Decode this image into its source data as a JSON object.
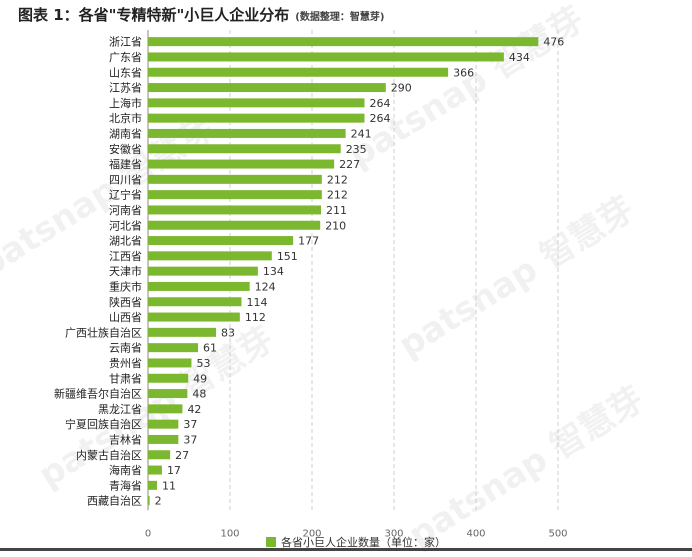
{
  "title": {
    "main": "图表 1：各省\"专精特新\"小巨人企业分布",
    "note": "(数据整理：智慧芽)"
  },
  "watermark": "patsnap 智慧芽",
  "colors": {
    "bar": "#7cb82f",
    "grid": "#cfcfcf",
    "axis": "#888888"
  },
  "chart_data": {
    "type": "bar",
    "orientation": "horizontal",
    "categories": [
      "浙江省",
      "广东省",
      "山东省",
      "江苏省",
      "上海市",
      "北京市",
      "湖南省",
      "安徽省",
      "福建省",
      "四川省",
      "辽宁省",
      "河南省",
      "河北省",
      "湖北省",
      "江西省",
      "天津市",
      "重庆市",
      "陕西省",
      "山西省",
      "广西壮族自治区",
      "云南省",
      "贵州省",
      "甘肃省",
      "新疆维吾尔自治区",
      "黑龙江省",
      "宁夏回族自治区",
      "吉林省",
      "内蒙古自治区",
      "海南省",
      "青海省",
      "西藏自治区"
    ],
    "series": [
      {
        "name": "各省小巨人企业数量（单位：家）",
        "values": [
          476,
          434,
          366,
          290,
          264,
          264,
          241,
          235,
          227,
          212,
          212,
          211,
          210,
          177,
          151,
          134,
          124,
          114,
          112,
          83,
          61,
          53,
          49,
          48,
          42,
          37,
          37,
          27,
          17,
          11,
          2
        ]
      }
    ],
    "xlim": [
      0,
      500
    ],
    "xticks": [
      0,
      100,
      200,
      300,
      400,
      500
    ],
    "grid": "vertical dashed",
    "legend": "bottom"
  }
}
